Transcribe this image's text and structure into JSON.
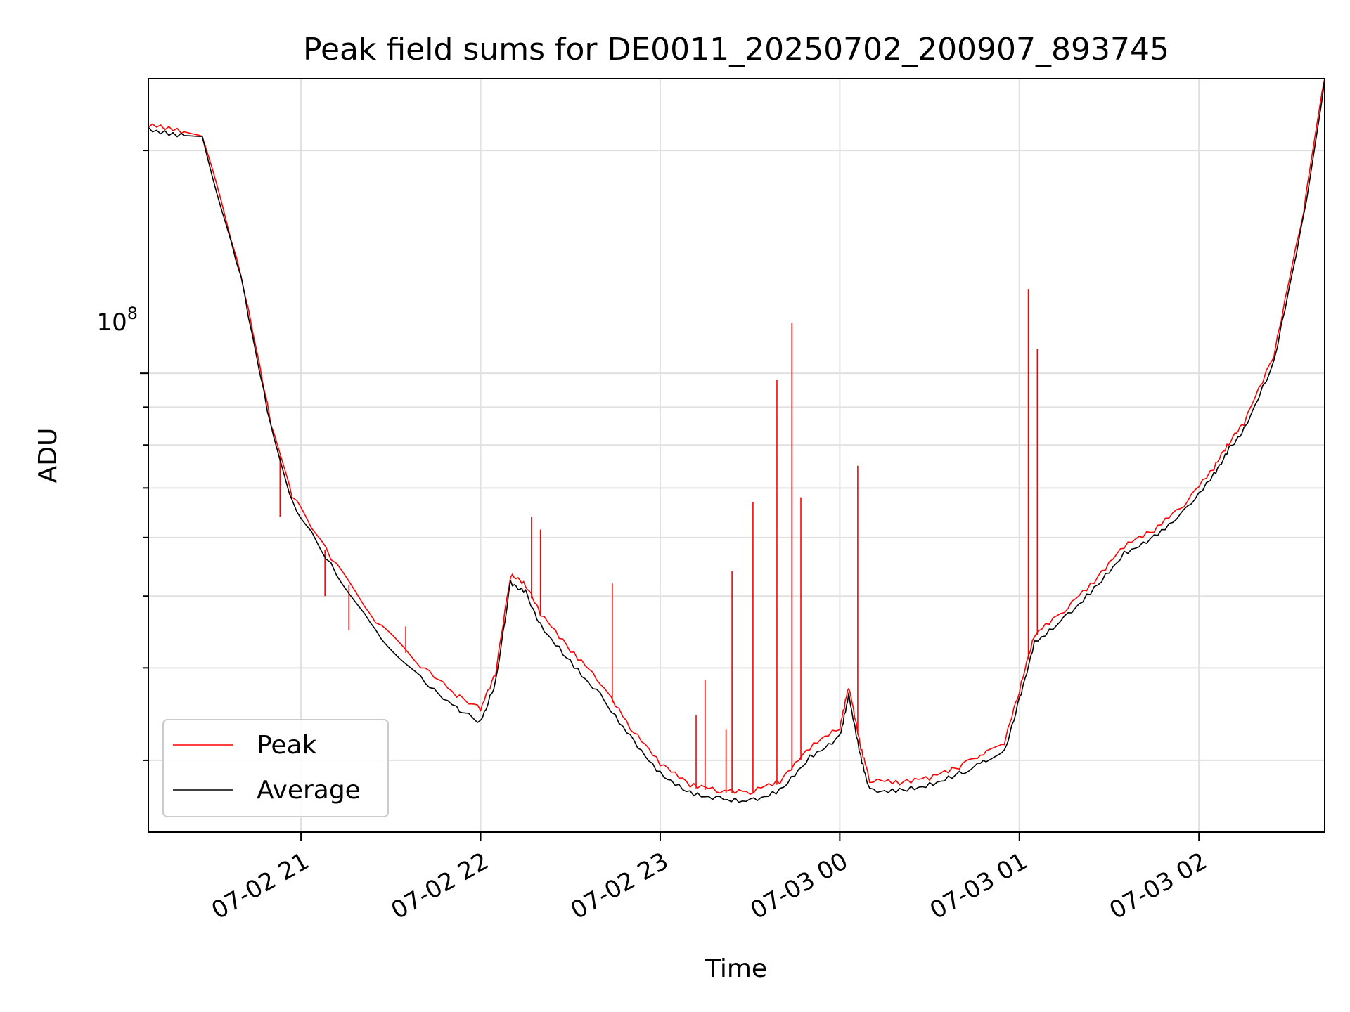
{
  "chart_data": {
    "type": "line",
    "title": "Peak field sums for DE0011_20250702_200907_893745",
    "xlabel": "Time",
    "ylabel": "ADU",
    "y_scale": "log",
    "y_tick_labels": [
      {
        "base": "10",
        "exp": "8",
        "value": 100000000
      }
    ],
    "ylim": [
      24000000,
      250000000
    ],
    "xlim": [
      "2025-07-02 20:09:00",
      "2025-07-03 02:42:00"
    ],
    "x_ticks": [
      {
        "label": "07-02 21",
        "value": "2025-07-02 21:00"
      },
      {
        "label": "07-02 22",
        "value": "2025-07-02 22:00"
      },
      {
        "label": "07-02 23",
        "value": "2025-07-02 23:00"
      },
      {
        "label": "07-03 00",
        "value": "2025-07-03 00:00"
      },
      {
        "label": "07-03 01",
        "value": "2025-07-03 01:00"
      },
      {
        "label": "07-03 02",
        "value": "2025-07-03 02:00"
      }
    ],
    "grid": true,
    "legend_position": "lower-left",
    "series": [
      {
        "name": "Peak",
        "color": "#ff0000",
        "x": [
          "2025-07-02 20:09",
          "2025-07-02 20:20",
          "2025-07-02 20:27",
          "2025-07-02 20:40",
          "2025-07-02 20:50",
          "2025-07-02 20:57",
          "2025-07-02 21:10",
          "2025-07-02 21:25",
          "2025-07-02 21:40",
          "2025-07-02 21:52",
          "2025-07-02 22:00",
          "2025-07-02 22:05",
          "2025-07-02 22:10",
          "2025-07-02 22:15",
          "2025-07-02 22:20",
          "2025-07-02 22:30",
          "2025-07-02 22:40",
          "2025-07-02 22:50",
          "2025-07-02 23:00",
          "2025-07-02 23:10",
          "2025-07-02 23:20",
          "2025-07-02 23:30",
          "2025-07-02 23:40",
          "2025-07-02 23:50",
          "2025-07-03 00:00",
          "2025-07-03 00:03",
          "2025-07-03 00:07",
          "2025-07-03 00:10",
          "2025-07-03 00:20",
          "2025-07-03 00:30",
          "2025-07-03 00:40",
          "2025-07-03 00:48",
          "2025-07-03 00:55",
          "2025-07-03 01:00",
          "2025-07-03 01:05",
          "2025-07-03 01:15",
          "2025-07-03 01:25",
          "2025-07-03 01:35",
          "2025-07-03 01:45",
          "2025-07-03 01:55",
          "2025-07-03 02:05",
          "2025-07-03 02:10",
          "2025-07-03 02:15",
          "2025-07-03 02:25",
          "2025-07-03 02:35",
          "2025-07-03 02:42"
        ],
        "y": [
          215000000,
          211000000,
          209000000,
          135000000,
          85000000,
          68000000,
          56000000,
          46000000,
          40000000,
          36500000,
          35000000,
          39000000,
          53000000,
          51500000,
          47000000,
          42000000,
          38000000,
          33000000,
          29500000,
          27600000,
          27100000,
          27000000,
          27900000,
          31000000,
          33000000,
          37500000,
          31000000,
          28000000,
          27800000,
          28200000,
          29200000,
          30500000,
          31500000,
          37000000,
          44000000,
          47500000,
          52000000,
          58000000,
          61000000,
          66000000,
          74000000,
          80000000,
          85000000,
          105000000,
          165000000,
          250000000
        ],
        "spikes": [
          {
            "x": "2025-07-02 20:53",
            "y": 64000000
          },
          {
            "x": "2025-07-02 21:08",
            "y": 50000000
          },
          {
            "x": "2025-07-02 21:16",
            "y": 45000000
          },
          {
            "x": "2025-07-02 21:35",
            "y": 45500000
          },
          {
            "x": "2025-07-02 22:17",
            "y": 64000000
          },
          {
            "x": "2025-07-02 22:20",
            "y": 61500000
          },
          {
            "x": "2025-07-02 22:44",
            "y": 52000000
          },
          {
            "x": "2025-07-02 23:12",
            "y": 34500000
          },
          {
            "x": "2025-07-02 23:15",
            "y": 38500000
          },
          {
            "x": "2025-07-02 23:22",
            "y": 33000000
          },
          {
            "x": "2025-07-02 23:24",
            "y": 54000000
          },
          {
            "x": "2025-07-02 23:31",
            "y": 67000000
          },
          {
            "x": "2025-07-02 23:39",
            "y": 98000000
          },
          {
            "x": "2025-07-02 23:44",
            "y": 117000000
          },
          {
            "x": "2025-07-02 23:47",
            "y": 68000000
          },
          {
            "x": "2025-07-03 00:06",
            "y": 75000000
          },
          {
            "x": "2025-07-03 01:03",
            "y": 130000000
          },
          {
            "x": "2025-07-03 01:06",
            "y": 108000000
          }
        ]
      },
      {
        "name": "Average",
        "color": "#000000",
        "x": [
          "2025-07-02 20:09",
          "2025-07-02 20:20",
          "2025-07-02 20:27",
          "2025-07-02 20:40",
          "2025-07-02 20:50",
          "2025-07-02 20:57",
          "2025-07-02 21:10",
          "2025-07-02 21:25",
          "2025-07-02 21:40",
          "2025-07-02 21:52",
          "2025-07-02 22:00",
          "2025-07-02 22:05",
          "2025-07-02 22:10",
          "2025-07-02 22:15",
          "2025-07-02 22:20",
          "2025-07-02 22:30",
          "2025-07-02 22:40",
          "2025-07-02 22:50",
          "2025-07-02 23:00",
          "2025-07-02 23:10",
          "2025-07-02 23:20",
          "2025-07-02 23:30",
          "2025-07-02 23:40",
          "2025-07-02 23:50",
          "2025-07-03 00:00",
          "2025-07-03 00:03",
          "2025-07-03 00:07",
          "2025-07-03 00:10",
          "2025-07-03 00:20",
          "2025-07-03 00:30",
          "2025-07-03 00:40",
          "2025-07-03 00:48",
          "2025-07-03 00:55",
          "2025-07-03 01:00",
          "2025-07-03 01:05",
          "2025-07-03 01:15",
          "2025-07-03 01:25",
          "2025-07-03 01:35",
          "2025-07-03 01:45",
          "2025-07-03 01:55",
          "2025-07-03 02:05",
          "2025-07-03 02:10",
          "2025-07-03 02:15",
          "2025-07-03 02:25",
          "2025-07-03 02:35",
          "2025-07-03 02:42"
        ],
        "y": [
          215000000,
          211000000,
          209000000,
          135000000,
          85000000,
          67500000,
          55500000,
          45000000,
          39000000,
          35500000,
          34000000,
          38500000,
          52500000,
          51000000,
          46000000,
          41000000,
          37000000,
          32500000,
          29000000,
          27300000,
          26800000,
          26600000,
          27500000,
          30500000,
          32500000,
          37000000,
          30500000,
          27500000,
          27500000,
          28000000,
          29000000,
          30000000,
          31000000,
          36500000,
          43500000,
          47000000,
          51500000,
          57500000,
          60500000,
          65500000,
          73500000,
          79500000,
          84500000,
          104000000,
          164000000,
          250000000
        ]
      }
    ]
  }
}
